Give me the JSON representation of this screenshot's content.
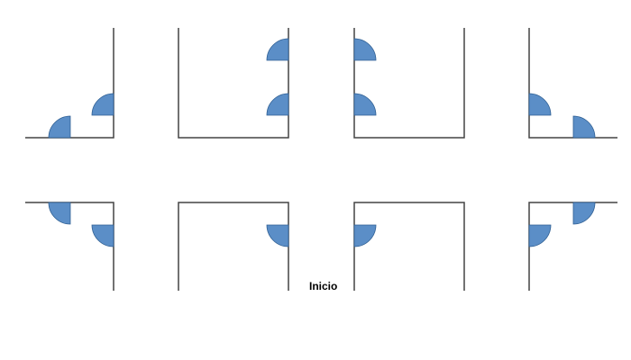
{
  "label": "Inicio",
  "colors": {
    "line": "#444444",
    "quarter_fill": "#5b8ec7",
    "quarter_stroke": "#2f5f93",
    "background": "#ffffff"
  }
}
